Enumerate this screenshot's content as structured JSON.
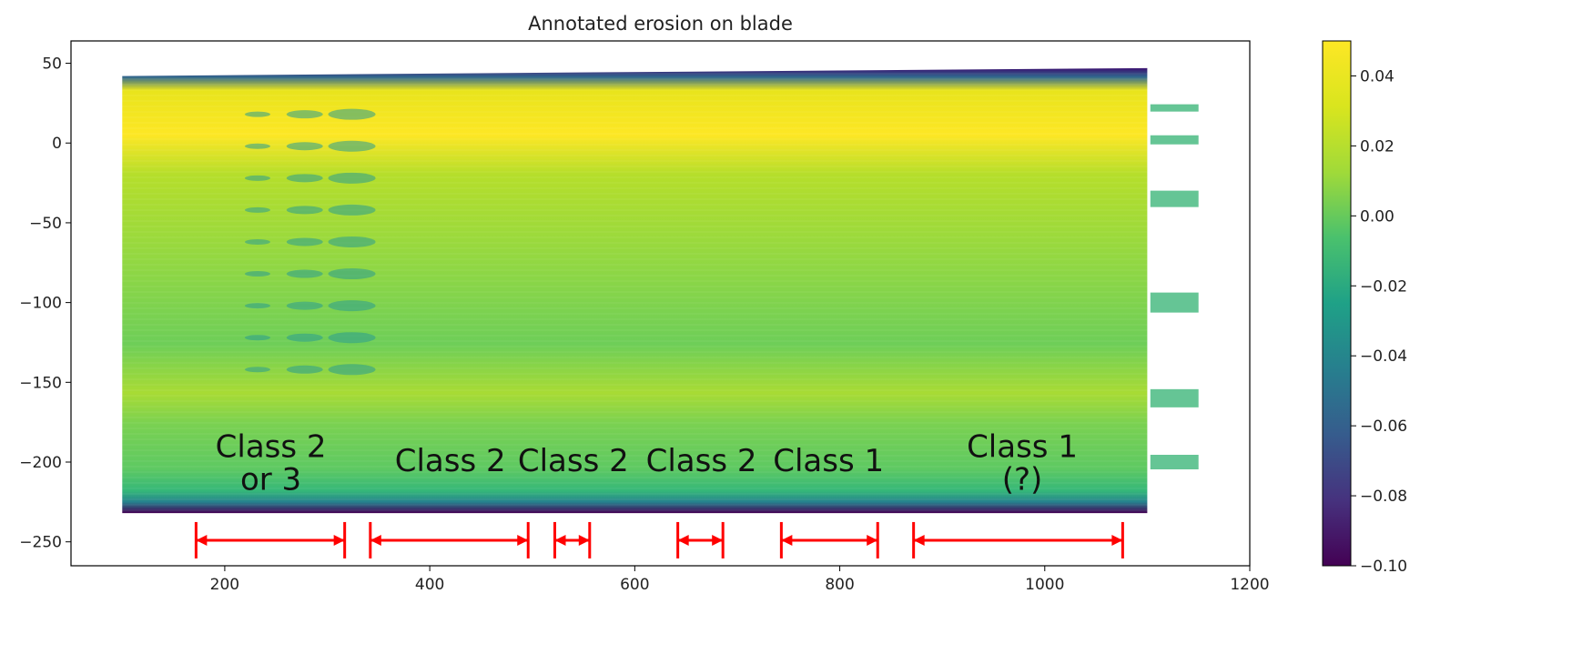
{
  "chart_data": {
    "type": "heatmap",
    "title": "Annotated erosion on blade",
    "xlabel": "",
    "ylabel": "",
    "xlim": [
      50,
      1200
    ],
    "ylim": [
      -265,
      64
    ],
    "x_ticks": [
      200,
      400,
      600,
      800,
      1000,
      1200
    ],
    "y_ticks": [
      50,
      0,
      -50,
      -100,
      -150,
      -200,
      -250
    ],
    "colorbar": {
      "colormap": "viridis",
      "range": [
        -0.1,
        0.05
      ],
      "ticks": [
        0.04,
        0.02,
        0.0,
        -0.02,
        -0.04,
        -0.06,
        -0.08,
        -0.1
      ],
      "tick_labels": [
        "0.04",
        "0.02",
        "0.00",
        "−0.02",
        "−0.04",
        "−0.06",
        "−0.08",
        "−0.10"
      ]
    },
    "y_tick_labels": [
      "50",
      "0",
      "−50",
      "−100",
      "−150",
      "−200",
      "−250"
    ],
    "x_tick_labels": [
      "200",
      "400",
      "600",
      "800",
      "1000",
      "1200"
    ],
    "blade": {
      "x_range": [
        100,
        1100
      ],
      "top_left_y": 42,
      "top_right_y": 47,
      "bottom_y": -232
    },
    "annotations": [
      {
        "lines": [
          "Class 2",
          "or 3"
        ],
        "x": 245,
        "y": -190,
        "span": [
          172,
          317
        ]
      },
      {
        "lines": [
          "Class 2"
        ],
        "x": 420,
        "y": -199,
        "span": [
          342,
          496
        ]
      },
      {
        "lines": [
          "Class 2"
        ],
        "x": 540,
        "y": -199,
        "span": [
          522,
          556
        ]
      },
      {
        "lines": [
          "Class 2"
        ],
        "x": 665,
        "y": -199,
        "span": [
          642,
          686
        ]
      },
      {
        "lines": [
          "Class 1"
        ],
        "x": 789,
        "y": -199,
        "span": [
          743,
          837
        ]
      },
      {
        "lines": [
          "Class 1",
          "(?)"
        ],
        "x": 978,
        "y": -190,
        "span": [
          872,
          1076
        ]
      }
    ],
    "annotation_arrow_y": -249,
    "colors": {
      "arrow": "#ff0000",
      "blade_base": "#7ccc4c",
      "blade_edge": "#3b0f70"
    }
  }
}
